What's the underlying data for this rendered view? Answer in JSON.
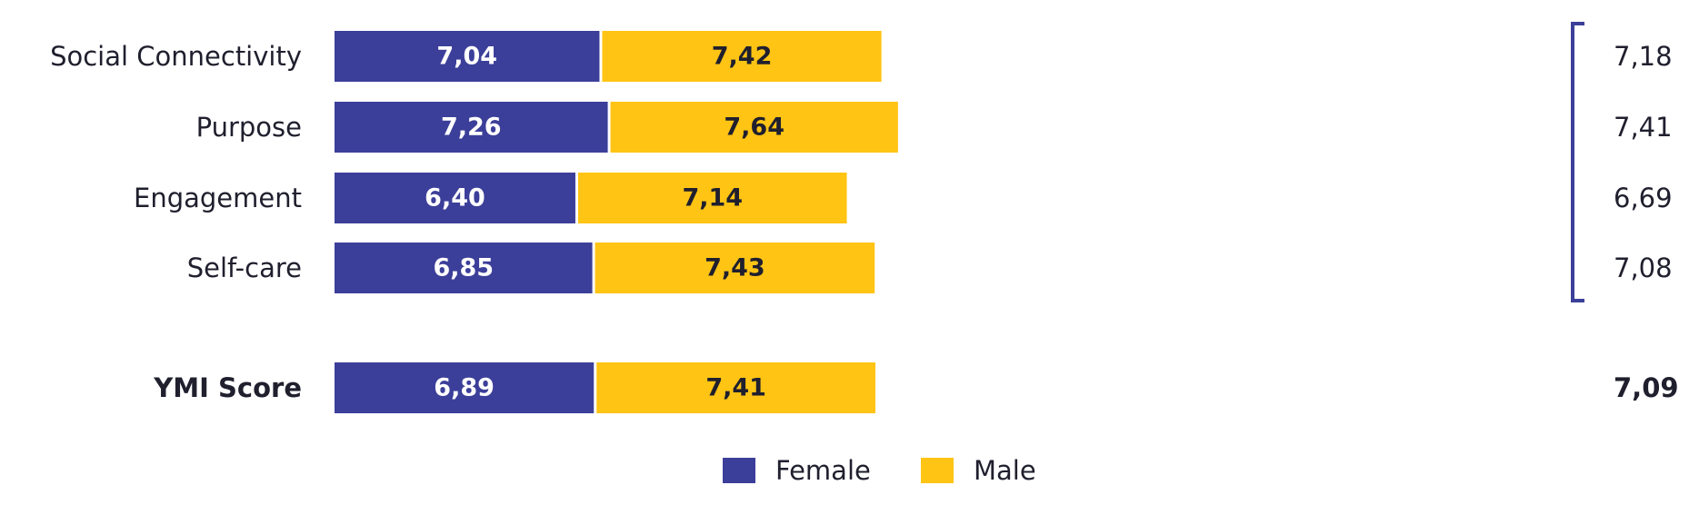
{
  "colors": {
    "female": "#3c3f99",
    "male": "#ffc414",
    "bracket": "#3c3f99",
    "text_dark": "#1f1f2e",
    "text_light": "#ffffff"
  },
  "chart_data": {
    "type": "bar",
    "orientation": "horizontal",
    "stacked": true,
    "categories": [
      "Social Connectivity",
      "Purpose",
      "Engagement",
      "Self-care",
      "YMI Score"
    ],
    "emphasized_categories": [
      "YMI Score"
    ],
    "series": [
      {
        "name": "Female",
        "values": [
          7.04,
          7.26,
          6.4,
          6.85,
          6.89
        ],
        "labels": [
          "7,04",
          "7,26",
          "6,40",
          "6,85",
          "6,89"
        ]
      },
      {
        "name": "Male",
        "values": [
          7.42,
          7.64,
          7.14,
          7.43,
          7.41
        ],
        "labels": [
          "7,42",
          "7,64",
          "7,14",
          "7,43",
          "7,41"
        ]
      }
    ],
    "totals": {
      "values": [
        7.18,
        7.41,
        6.69,
        7.08,
        7.09
      ],
      "labels": [
        "7,18",
        "7,41",
        "6,69",
        "7,08",
        "7,09"
      ]
    },
    "bracket_groups": [
      [
        0,
        3
      ]
    ],
    "legend": {
      "position": "bottom",
      "entries": [
        "Female",
        "Male"
      ]
    },
    "grid": false,
    "axes_visible": false
  }
}
